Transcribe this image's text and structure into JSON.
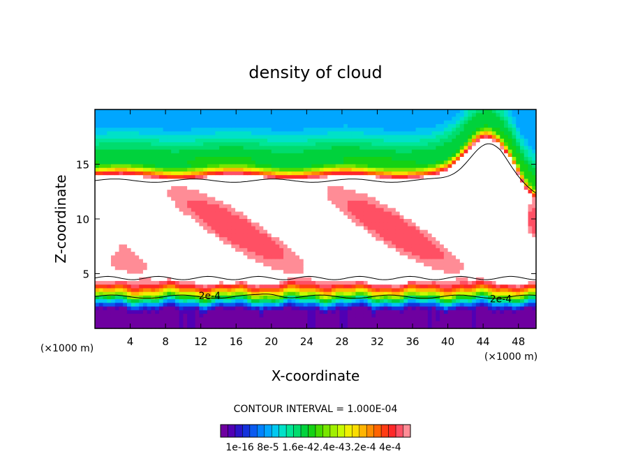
{
  "chart_data": {
    "type": "heatmap",
    "title": "density of cloud",
    "xlabel": "X-coordinate",
    "ylabel": "Z-coordinate",
    "x_unit": "(×1000 m)",
    "y_unit": "(×1000 m)",
    "xlim": [
      0,
      50
    ],
    "ylim": [
      0,
      20
    ],
    "x_ticks": [
      4,
      8,
      12,
      16,
      20,
      24,
      28,
      32,
      36,
      40,
      44,
      48
    ],
    "x_tick_labels": [
      "4",
      "8",
      "12",
      "16",
      "20",
      "24",
      "28",
      "32",
      "36",
      "40",
      "44",
      "48"
    ],
    "y_ticks": [
      5,
      10,
      15
    ],
    "y_tick_labels": [
      "5",
      "10",
      "15"
    ],
    "contour_interval_text": "CONTOUR INTERVAL = 1.000E-04",
    "contour_labels": [
      {
        "text": "2e-4",
        "x": 13.0,
        "z": 3.0
      },
      {
        "text": "2e-4",
        "x": 46.0,
        "z": 2.7
      }
    ],
    "colorbar_tick_labels": "1e-16 8e-5 1.6e-42.4e-43.2e-4 4e-4",
    "colorbar_min": 1e-16,
    "colorbar_max": 0.0004,
    "colorbar_levels": 26,
    "grid": false
  },
  "colors": {
    "scale": [
      "#6e00a0",
      "#5000b4",
      "#2a14c8",
      "#1432dc",
      "#0a5af0",
      "#0082ff",
      "#00a6ff",
      "#00c8f0",
      "#00e1c8",
      "#00e696",
      "#00dc6e",
      "#00d23c",
      "#14d214",
      "#46dc00",
      "#78e600",
      "#a0f000",
      "#c8fa00",
      "#f0f000",
      "#fadc00",
      "#ffb400",
      "#ff8c00",
      "#ff6400",
      "#ff3c14",
      "#ff2828",
      "#ff5064",
      "#ff8c96"
    ]
  }
}
